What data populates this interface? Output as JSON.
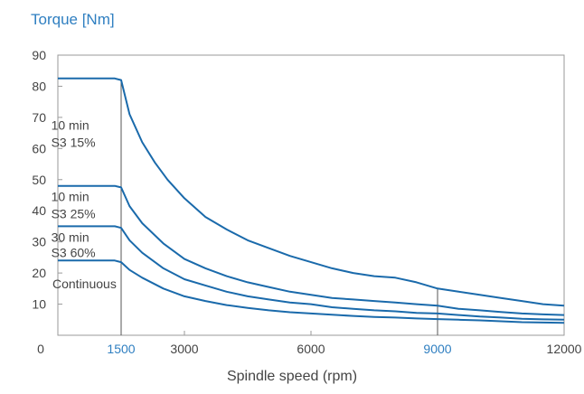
{
  "chart_data": {
    "type": "line",
    "title": "Torque [Nm]",
    "xlabel": "Spindle speed (rpm)",
    "ylabel": "",
    "xlim": [
      0,
      12000
    ],
    "ylim": [
      0,
      90
    ],
    "x_ticks": [
      {
        "value": 0,
        "label": "0",
        "highlight": false
      },
      {
        "value": 1500,
        "label": "1500",
        "highlight": true
      },
      {
        "value": 3000,
        "label": "3000",
        "highlight": false
      },
      {
        "value": 6000,
        "label": "6000",
        "highlight": false
      },
      {
        "value": 9000,
        "label": "9000",
        "highlight": true
      },
      {
        "value": 12000,
        "label": "12000",
        "highlight": false
      }
    ],
    "y_ticks": [
      10,
      20,
      30,
      40,
      50,
      60,
      70,
      80,
      90
    ],
    "reference_lines_x": [
      1500,
      9000
    ],
    "grid": false,
    "colors": {
      "title": "#2f7fc1",
      "line": "#1a6aab",
      "highlight_tick": "#2f7fc1",
      "text": "#444444",
      "frame": "#9a9a9a"
    },
    "series": [
      {
        "id": "s3-15",
        "label_lines": [
          "10 min",
          "S3 15%"
        ],
        "points": [
          [
            0,
            82.5
          ],
          [
            1350,
            82.5
          ],
          [
            1500,
            82
          ],
          [
            1700,
            71
          ],
          [
            2000,
            62
          ],
          [
            2300,
            55.5
          ],
          [
            2600,
            50
          ],
          [
            3000,
            44
          ],
          [
            3500,
            38
          ],
          [
            4000,
            34
          ],
          [
            4500,
            30.5
          ],
          [
            5000,
            28
          ],
          [
            5500,
            25.5
          ],
          [
            6000,
            23.5
          ],
          [
            6500,
            21.5
          ],
          [
            7000,
            20
          ],
          [
            7500,
            19
          ],
          [
            8000,
            18.5
          ],
          [
            8500,
            17
          ],
          [
            9000,
            15
          ],
          [
            9500,
            14
          ],
          [
            10000,
            13
          ],
          [
            10500,
            12
          ],
          [
            11000,
            11
          ],
          [
            11500,
            10
          ],
          [
            12000,
            9.5
          ]
        ]
      },
      {
        "id": "s3-25",
        "label_lines": [
          "10 min",
          "S3 25%"
        ],
        "points": [
          [
            0,
            48
          ],
          [
            1350,
            48
          ],
          [
            1500,
            47.5
          ],
          [
            1700,
            41.5
          ],
          [
            2000,
            36
          ],
          [
            2500,
            29.5
          ],
          [
            3000,
            24.5
          ],
          [
            3500,
            21.5
          ],
          [
            4000,
            19
          ],
          [
            4500,
            17
          ],
          [
            5000,
            15.5
          ],
          [
            5500,
            14
          ],
          [
            6000,
            13
          ],
          [
            6500,
            12
          ],
          [
            7000,
            11.5
          ],
          [
            7500,
            11
          ],
          [
            8000,
            10.5
          ],
          [
            8500,
            10
          ],
          [
            9000,
            9.5
          ],
          [
            9500,
            8.5
          ],
          [
            10000,
            8
          ],
          [
            10500,
            7.5
          ],
          [
            11000,
            7
          ],
          [
            11500,
            6.7
          ],
          [
            12000,
            6.5
          ]
        ]
      },
      {
        "id": "s3-60",
        "label_lines": [
          "30 min",
          "S3 60%"
        ],
        "points": [
          [
            0,
            35
          ],
          [
            1350,
            35
          ],
          [
            1500,
            34.5
          ],
          [
            1700,
            30.5
          ],
          [
            2000,
            26.5
          ],
          [
            2500,
            21.5
          ],
          [
            3000,
            18
          ],
          [
            3500,
            16
          ],
          [
            4000,
            14
          ],
          [
            4500,
            12.5
          ],
          [
            5000,
            11.5
          ],
          [
            5500,
            10.5
          ],
          [
            6000,
            10
          ],
          [
            6500,
            9
          ],
          [
            7000,
            8.5
          ],
          [
            7500,
            8
          ],
          [
            8000,
            7.7
          ],
          [
            8500,
            7.2
          ],
          [
            9000,
            7
          ],
          [
            9500,
            6.5
          ],
          [
            10000,
            6
          ],
          [
            10500,
            5.7
          ],
          [
            11000,
            5.3
          ],
          [
            11500,
            5.1
          ],
          [
            12000,
            5
          ]
        ]
      },
      {
        "id": "continuous",
        "label_lines": [
          "Continuous"
        ],
        "points": [
          [
            0,
            24
          ],
          [
            1350,
            24
          ],
          [
            1500,
            23.5
          ],
          [
            1700,
            21
          ],
          [
            2000,
            18.5
          ],
          [
            2500,
            15
          ],
          [
            3000,
            12.5
          ],
          [
            3500,
            11
          ],
          [
            4000,
            9.7
          ],
          [
            4500,
            8.8
          ],
          [
            5000,
            8
          ],
          [
            5500,
            7.4
          ],
          [
            6000,
            7
          ],
          [
            6500,
            6.6
          ],
          [
            7000,
            6.2
          ],
          [
            7500,
            5.9
          ],
          [
            8000,
            5.7
          ],
          [
            8500,
            5.4
          ],
          [
            9000,
            5.2
          ],
          [
            9500,
            5
          ],
          [
            10000,
            4.8
          ],
          [
            10500,
            4.5
          ],
          [
            11000,
            4.2
          ],
          [
            11500,
            4.1
          ],
          [
            12000,
            4
          ]
        ]
      }
    ],
    "series_label_positions": [
      {
        "x": 120,
        "y": [
          67.5,
          62
        ]
      },
      {
        "x": 120,
        "y": [
          44.5,
          39
        ]
      },
      {
        "x": 120,
        "y": [
          31.5,
          26.5
        ]
      },
      {
        "x": 150,
        "y": [
          16.5
        ]
      }
    ]
  }
}
